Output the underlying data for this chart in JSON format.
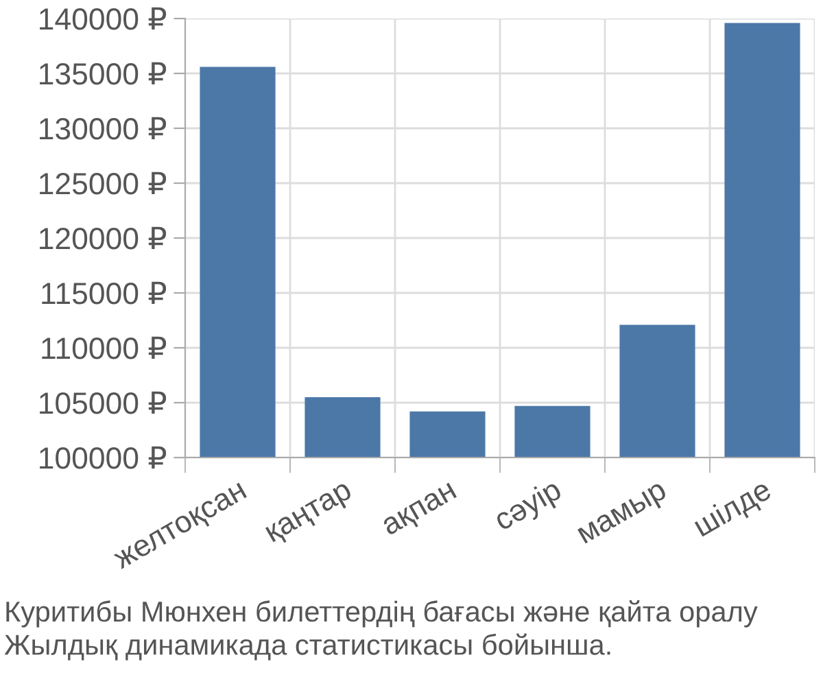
{
  "chart_data": {
    "type": "bar",
    "categories": [
      "желтоқсан",
      "қаңтар",
      "ақпан",
      "сәуір",
      "мамыр",
      "шілде"
    ],
    "values": [
      135600,
      105500,
      104200,
      104700,
      112100,
      139600
    ],
    "color": "#4c78a8",
    "ylim": [
      100000,
      140000
    ],
    "yticks": [
      {
        "value": 100000,
        "label": "100000 ₽"
      },
      {
        "value": 105000,
        "label": "105000 ₽"
      },
      {
        "value": 110000,
        "label": "110000 ₽"
      },
      {
        "value": 115000,
        "label": "115000 ₽"
      },
      {
        "value": 120000,
        "label": "120000 ₽"
      },
      {
        "value": 125000,
        "label": "125000 ₽"
      },
      {
        "value": 130000,
        "label": "130000 ₽"
      },
      {
        "value": 135000,
        "label": "135000 ₽"
      },
      {
        "value": 140000,
        "label": "140000 ₽"
      }
    ],
    "grid": true,
    "annotations": [
      "Куритибы Мюнхен билеттердің бағасы және қайта оралу Жылдық динамикада статистикасы бойынша."
    ]
  }
}
